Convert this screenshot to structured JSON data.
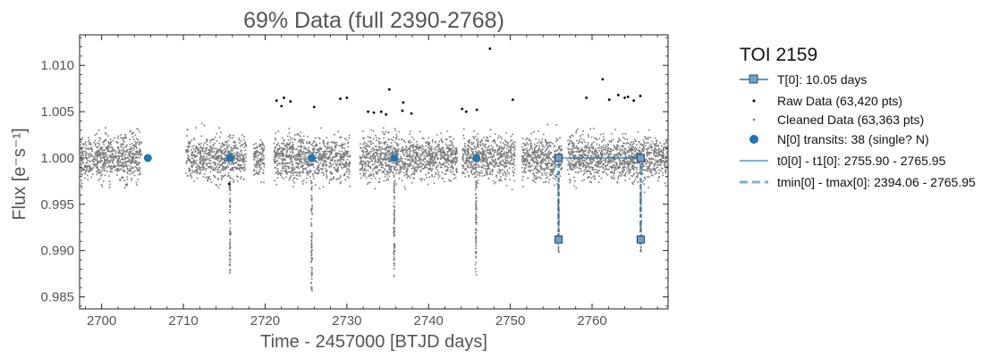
{
  "chart_data": {
    "type": "scatter",
    "title": "69% Data (full 2390-2768)",
    "xlabel": "Time - 2457000 [BTJD days]",
    "ylabel": "Flux [e⁻s⁻¹]",
    "xlim": [
      2697.3,
      2769.3
    ],
    "ylim": [
      0.9837,
      1.0133
    ],
    "x_ticks": [
      2700,
      2710,
      2720,
      2730,
      2740,
      2750,
      2760
    ],
    "y_ticks": [
      0.985,
      0.99,
      0.995,
      1.0,
      1.005,
      1.01
    ],
    "x_tick_labels": [
      "2700",
      "2710",
      "2720",
      "2730",
      "2740",
      "2750",
      "2760"
    ],
    "y_tick_labels": [
      "0.985",
      "0.990",
      "0.995",
      "1.000",
      "1.005",
      "1.010"
    ],
    "grid": false,
    "legend": {
      "placement": "outside-right",
      "title": "TOI 2159",
      "entries": [
        {
          "label": "T[0]: 10.05 days",
          "series": "period_markers"
        },
        {
          "label": "Raw Data (63,420 pts)",
          "series": "raw"
        },
        {
          "label": "Cleaned Data (63,363 pts)",
          "series": "cleaned"
        },
        {
          "label": "N[0] transits: 38 (single? N)",
          "series": "transits"
        },
        {
          "label": "t0[0] - t1[0]: 2755.90 - 2765.95",
          "series": "t0_t1"
        },
        {
          "label": "tmin[0] - tmax[0]: 2394.06 - 2765.95",
          "series": "tmin_tmax"
        }
      ]
    },
    "series": [
      {
        "name": "Cleaned Data (63,363 pts)",
        "kind": "band",
        "color": "#777777",
        "segments": [
          [
            2697.3,
            2704.9
          ],
          [
            2710.3,
            2717.7
          ],
          [
            2718.6,
            2719.9
          ],
          [
            2721.1,
            2730.4
          ],
          [
            2731.6,
            2743.5
          ],
          [
            2744.1,
            2750.6
          ],
          [
            2751.4,
            2756.3
          ],
          [
            2757.0,
            2769.3
          ]
        ],
        "baseline": 1.0,
        "scatter_halfwidth": 0.0035
      },
      {
        "name": "Transit dips",
        "kind": "dips",
        "color": "#777777",
        "points": [
          {
            "x": 2715.7,
            "depth_to": 0.9875
          },
          {
            "x": 2725.7,
            "depth_to": 0.9856
          },
          {
            "x": 2735.8,
            "depth_to": 0.9871
          },
          {
            "x": 2745.8,
            "depth_to": 0.9873
          },
          {
            "x": 2755.9,
            "depth_to": 0.9898
          },
          {
            "x": 2765.95,
            "depth_to": 0.9898
          }
        ]
      },
      {
        "name": "Raw Data (63,420 pts)",
        "kind": "points",
        "color": "#000000",
        "x": [
          2721.4,
          2722.0,
          2722.3,
          2723.1,
          2726.0,
          2729.2,
          2730.0,
          2732.6,
          2733.3,
          2734.2,
          2734.8,
          2735.2,
          2736.8,
          2736.9,
          2737.9,
          2744.1,
          2744.6,
          2745.9,
          2747.5,
          2750.3,
          2759.3,
          2761.3,
          2762.1,
          2763.2,
          2764.0,
          2764.4,
          2765.1,
          2765.9,
          2715.6
        ],
        "y": [
          1.0062,
          1.0056,
          1.0065,
          1.0061,
          1.0055,
          1.0064,
          1.0065,
          1.005,
          1.0049,
          1.005,
          1.0047,
          1.0074,
          1.0051,
          1.006,
          1.0048,
          1.0053,
          1.005,
          1.0052,
          1.0118,
          1.0063,
          1.0065,
          1.0085,
          1.0063,
          1.0068,
          1.0065,
          1.0066,
          1.0062,
          1.0067,
          0.9972
        ]
      },
      {
        "name": "N[0] transits: 38 (single? N)",
        "kind": "markers",
        "color": "#1f77b4",
        "x": [
          2705.65,
          2715.7,
          2725.7,
          2735.8,
          2745.85
        ],
        "y": [
          1.0,
          1.0,
          1.0,
          1.0,
          1.0
        ]
      },
      {
        "name": "T[0]: 10.05 days",
        "kind": "square_markers",
        "color": "#1f77b4",
        "points": [
          {
            "x": 2755.9,
            "y": 1.0
          },
          {
            "x": 2765.95,
            "y": 1.0
          },
          {
            "x": 2755.9,
            "y": 0.9912
          },
          {
            "x": 2765.95,
            "y": 0.9912
          }
        ]
      },
      {
        "name": "t0[0] - t1[0]: 2755.90 - 2765.95",
        "kind": "hline",
        "color": "#1f77b4",
        "x": [
          2755.9,
          2765.95
        ],
        "y": 1.0
      },
      {
        "name": "tmin[0] - tmax[0]: 2394.06 - 2765.95",
        "kind": "dashed_vlines",
        "color": "#1f77b4",
        "x": [
          2755.9,
          2765.95
        ],
        "y": [
          0.9912,
          1.0
        ]
      }
    ]
  }
}
